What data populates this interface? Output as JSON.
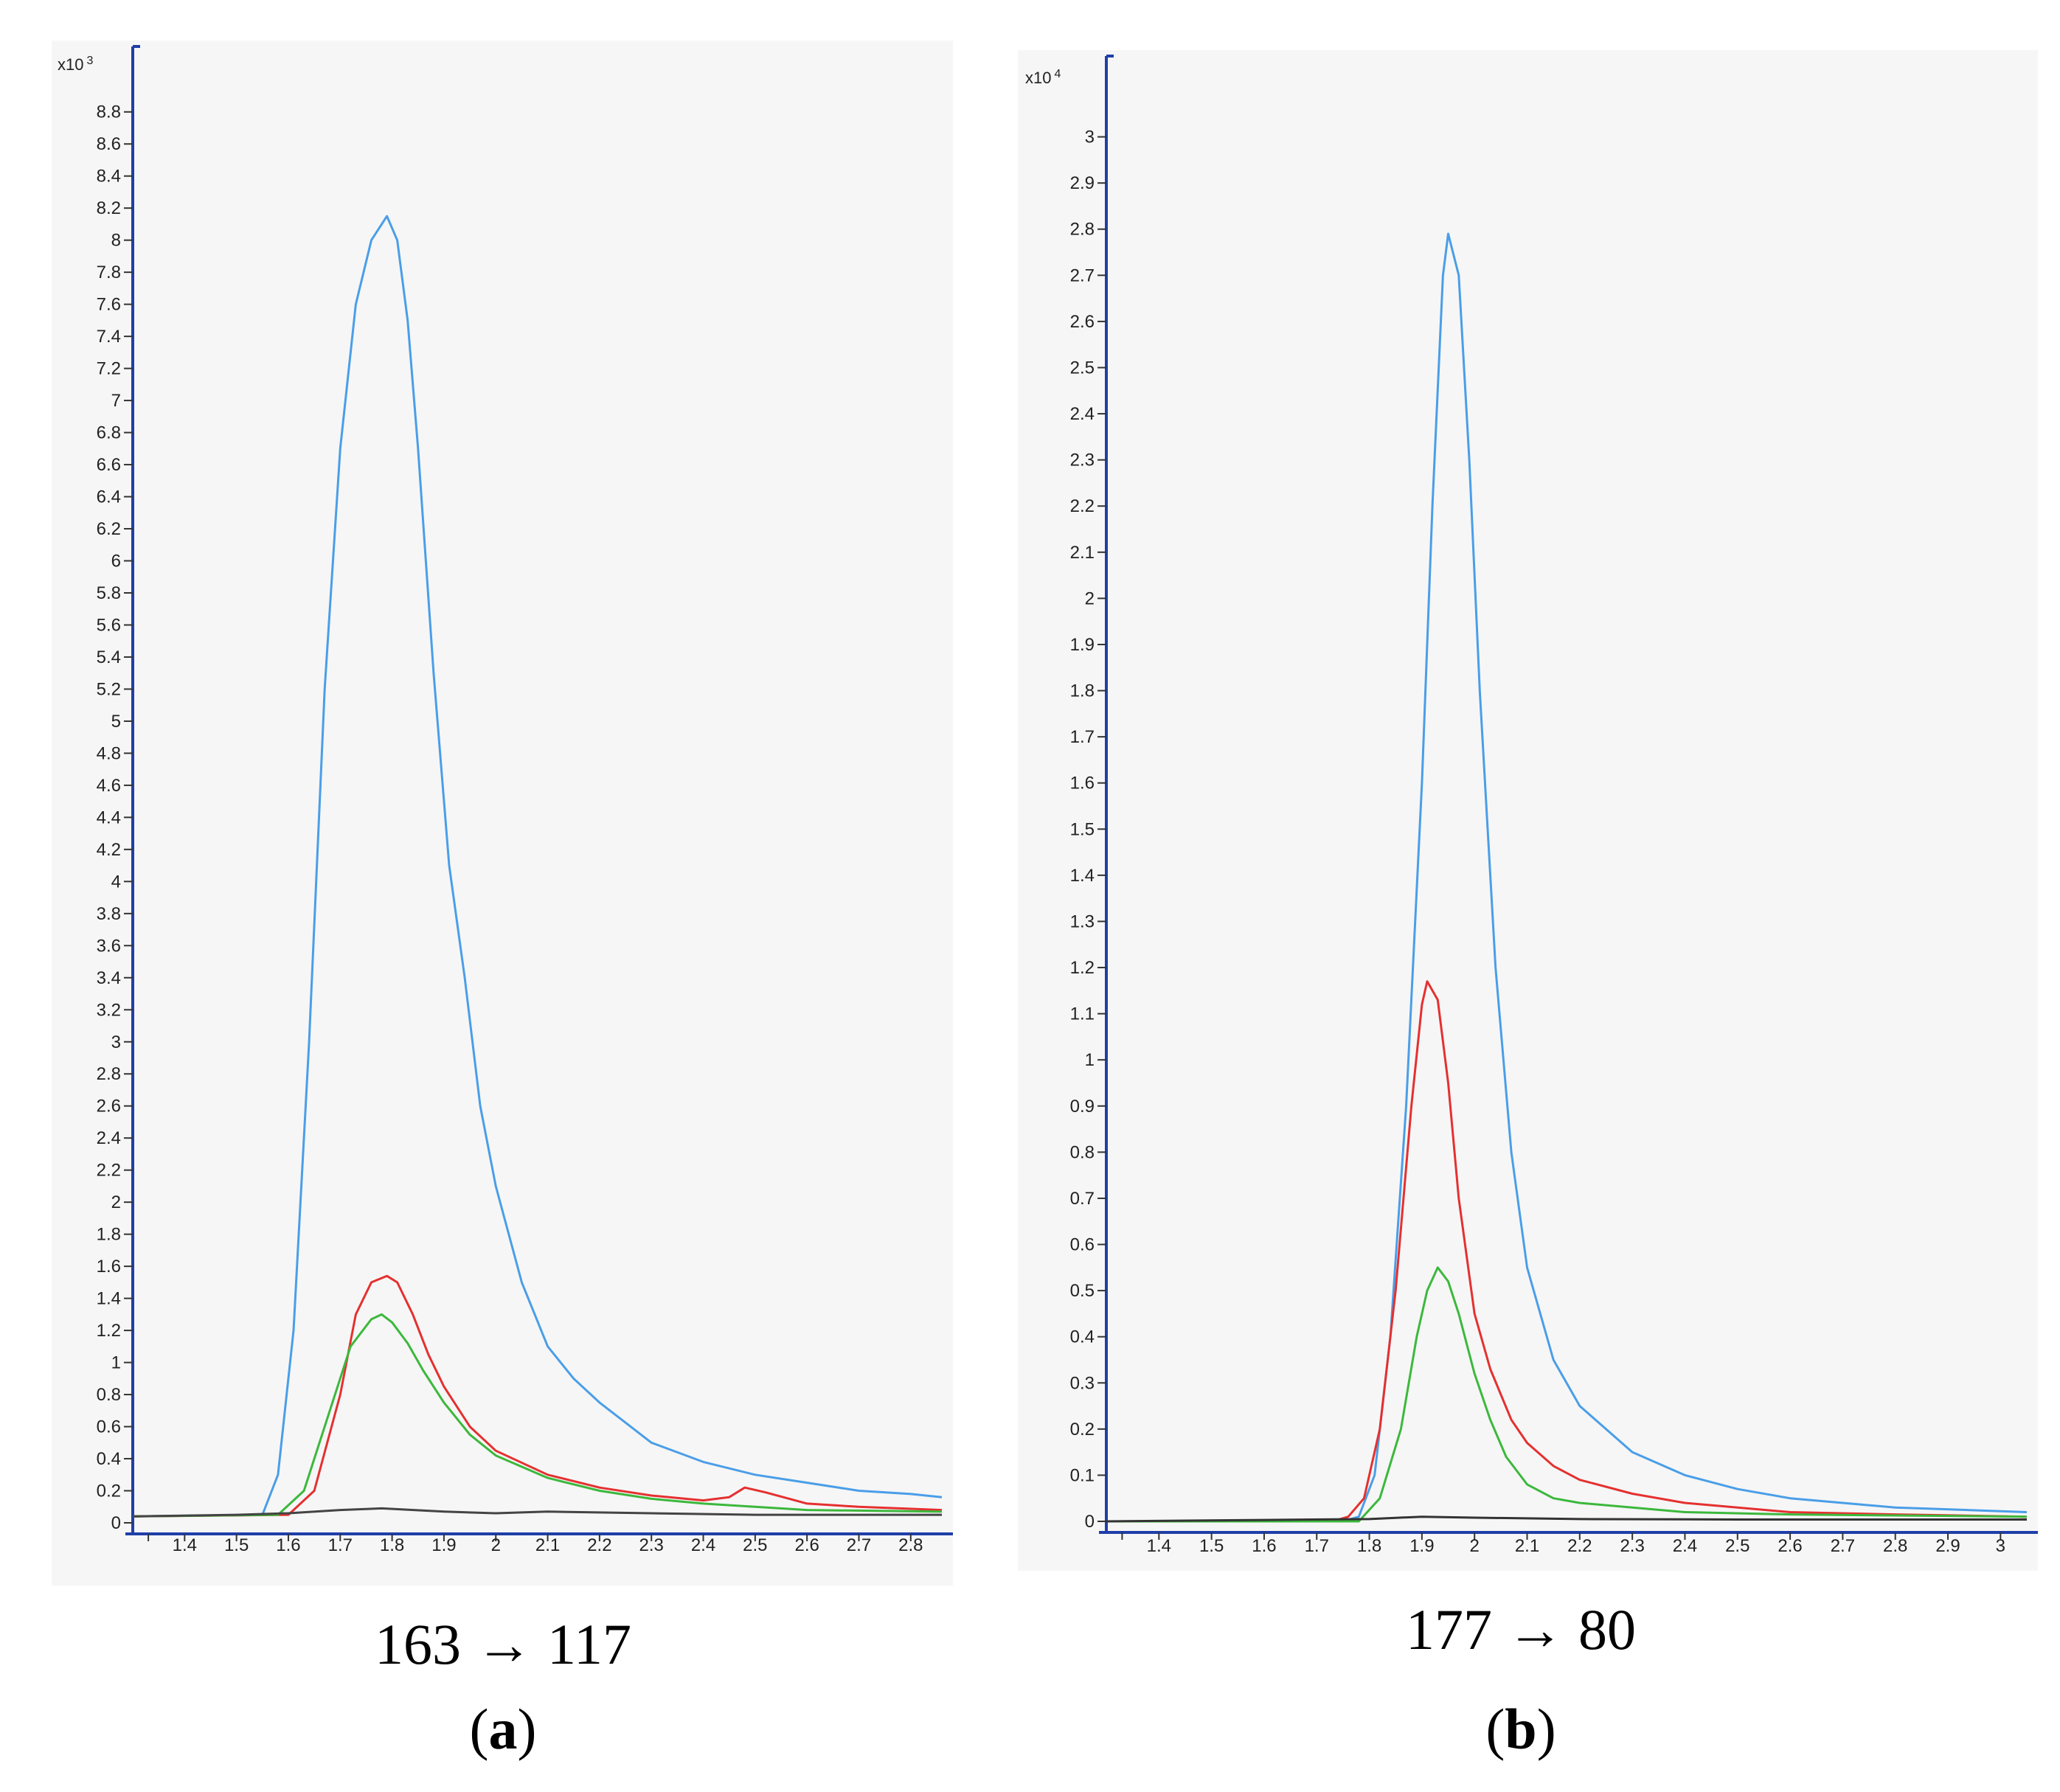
{
  "chart_data": [
    {
      "type": "line",
      "panel": "a",
      "title": "163 → 117",
      "letter": "a",
      "y_multiplier_label": "x10",
      "y_multiplier_exp": "3",
      "xlim": [
        1.3,
        2.86
      ],
      "ylim": [
        0,
        8.9
      ],
      "x_ticks": [
        "1.4",
        "1.5",
        "1.6",
        "1.7",
        "1.8",
        "1.9",
        "2",
        "2.1",
        "2.2",
        "2.3",
        "2.4",
        "2.5",
        "2.6",
        "2.7",
        "2.8"
      ],
      "y_ticks": [
        "0",
        "0.2",
        "0.4",
        "0.6",
        "0.8",
        "1",
        "1.2",
        "1.4",
        "1.6",
        "1.8",
        "2",
        "2.2",
        "2.4",
        "2.6",
        "2.8",
        "3",
        "3.2",
        "3.4",
        "3.6",
        "3.8",
        "4",
        "4.2",
        "4.4",
        "4.6",
        "4.8",
        "5",
        "5.2",
        "5.4",
        "5.6",
        "5.8",
        "6",
        "6.2",
        "6.4",
        "6.6",
        "6.8",
        "7",
        "7.2",
        "7.4",
        "7.6",
        "7.8",
        "8",
        "8.2",
        "8.4",
        "8.6",
        "8.8"
      ],
      "series": [
        {
          "name": "blue",
          "color": "#4a9ee8",
          "x": [
            1.3,
            1.55,
            1.58,
            1.61,
            1.64,
            1.67,
            1.7,
            1.73,
            1.76,
            1.79,
            1.81,
            1.83,
            1.85,
            1.88,
            1.91,
            1.94,
            1.97,
            2.0,
            2.05,
            2.1,
            2.15,
            2.2,
            2.3,
            2.4,
            2.5,
            2.6,
            2.7,
            2.8,
            2.86
          ],
          "y": [
            0.04,
            0.05,
            0.3,
            1.2,
            3.0,
            5.2,
            6.7,
            7.6,
            8.0,
            8.15,
            8.0,
            7.5,
            6.7,
            5.3,
            4.1,
            3.4,
            2.6,
            2.1,
            1.5,
            1.1,
            0.9,
            0.75,
            0.5,
            0.38,
            0.3,
            0.25,
            0.2,
            0.18,
            0.16
          ]
        },
        {
          "name": "red",
          "color": "#e53030",
          "x": [
            1.3,
            1.6,
            1.65,
            1.7,
            1.73,
            1.76,
            1.79,
            1.81,
            1.84,
            1.87,
            1.9,
            1.95,
            2.0,
            2.1,
            2.2,
            2.3,
            2.4,
            2.45,
            2.48,
            2.52,
            2.6,
            2.7,
            2.86
          ],
          "y": [
            0.04,
            0.05,
            0.2,
            0.8,
            1.3,
            1.5,
            1.54,
            1.5,
            1.3,
            1.05,
            0.85,
            0.6,
            0.45,
            0.3,
            0.22,
            0.17,
            0.14,
            0.16,
            0.22,
            0.19,
            0.12,
            0.1,
            0.08
          ]
        },
        {
          "name": "green",
          "color": "#3cb83c",
          "x": [
            1.3,
            1.58,
            1.63,
            1.68,
            1.72,
            1.76,
            1.78,
            1.8,
            1.83,
            1.86,
            1.9,
            1.95,
            2.0,
            2.1,
            2.2,
            2.3,
            2.4,
            2.5,
            2.6,
            2.86
          ],
          "y": [
            0.04,
            0.05,
            0.2,
            0.7,
            1.1,
            1.27,
            1.3,
            1.25,
            1.12,
            0.95,
            0.75,
            0.55,
            0.42,
            0.28,
            0.2,
            0.15,
            0.12,
            0.1,
            0.08,
            0.07
          ]
        },
        {
          "name": "black",
          "color": "#444444",
          "x": [
            1.3,
            1.5,
            1.6,
            1.7,
            1.78,
            1.9,
            2.0,
            2.1,
            2.3,
            2.5,
            2.7,
            2.86
          ],
          "y": [
            0.04,
            0.05,
            0.06,
            0.08,
            0.09,
            0.07,
            0.06,
            0.07,
            0.06,
            0.05,
            0.05,
            0.05
          ]
        }
      ]
    },
    {
      "type": "line",
      "panel": "b",
      "title": "177 → 80",
      "letter": "b",
      "y_multiplier_label": "x10",
      "y_multiplier_exp": "4",
      "xlim": [
        1.3,
        3.05
      ],
      "ylim": [
        0,
        3.1
      ],
      "x_ticks": [
        "1.4",
        "1.5",
        "1.6",
        "1.7",
        "1.8",
        "1.9",
        "2",
        "2.1",
        "2.2",
        "2.3",
        "2.4",
        "2.5",
        "2.6",
        "2.7",
        "2.8",
        "2.9",
        "3"
      ],
      "y_ticks": [
        "0",
        "0.1",
        "0.2",
        "0.3",
        "0.4",
        "0.5",
        "0.6",
        "0.7",
        "0.8",
        "0.9",
        "1",
        "1.1",
        "1.2",
        "1.3",
        "1.4",
        "1.5",
        "1.6",
        "1.7",
        "1.8",
        "1.9",
        "2",
        "2.1",
        "2.2",
        "2.3",
        "2.4",
        "2.5",
        "2.6",
        "2.7",
        "2.8",
        "2.9",
        "3"
      ],
      "series": [
        {
          "name": "blue",
          "color": "#4a9ee8",
          "x": [
            1.3,
            1.75,
            1.78,
            1.81,
            1.84,
            1.87,
            1.9,
            1.92,
            1.94,
            1.95,
            1.97,
            1.99,
            2.01,
            2.04,
            2.07,
            2.1,
            2.15,
            2.2,
            2.3,
            2.4,
            2.5,
            2.6,
            2.7,
            2.8,
            3.05
          ],
          "y": [
            0,
            0,
            0.01,
            0.1,
            0.4,
            0.9,
            1.6,
            2.2,
            2.7,
            2.79,
            2.7,
            2.3,
            1.8,
            1.2,
            0.8,
            0.55,
            0.35,
            0.25,
            0.15,
            0.1,
            0.07,
            0.05,
            0.04,
            0.03,
            0.02
          ]
        },
        {
          "name": "red",
          "color": "#e53030",
          "x": [
            1.3,
            1.73,
            1.76,
            1.79,
            1.82,
            1.85,
            1.88,
            1.9,
            1.91,
            1.93,
            1.95,
            1.97,
            2.0,
            2.03,
            2.07,
            2.1,
            2.15,
            2.2,
            2.3,
            2.4,
            2.5,
            2.6,
            2.8,
            3.05
          ],
          "y": [
            0,
            0,
            0.01,
            0.05,
            0.2,
            0.5,
            0.9,
            1.12,
            1.17,
            1.13,
            0.95,
            0.7,
            0.45,
            0.33,
            0.22,
            0.17,
            0.12,
            0.09,
            0.06,
            0.04,
            0.03,
            0.02,
            0.015,
            0.01
          ]
        },
        {
          "name": "green",
          "color": "#3cb83c",
          "x": [
            1.3,
            1.78,
            1.82,
            1.86,
            1.89,
            1.91,
            1.93,
            1.95,
            1.97,
            2.0,
            2.03,
            2.06,
            2.1,
            2.15,
            2.2,
            2.3,
            2.4,
            2.6,
            3.05
          ],
          "y": [
            0,
            0,
            0.05,
            0.2,
            0.4,
            0.5,
            0.55,
            0.52,
            0.45,
            0.32,
            0.22,
            0.14,
            0.08,
            0.05,
            0.04,
            0.03,
            0.02,
            0.015,
            0.01
          ]
        },
        {
          "name": "black",
          "color": "#333333",
          "x": [
            1.3,
            1.6,
            1.8,
            1.9,
            2.0,
            2.2,
            2.5,
            2.8,
            3.05
          ],
          "y": [
            0,
            0.003,
            0.005,
            0.01,
            0.008,
            0.005,
            0.004,
            0.004,
            0.004
          ]
        }
      ]
    }
  ]
}
